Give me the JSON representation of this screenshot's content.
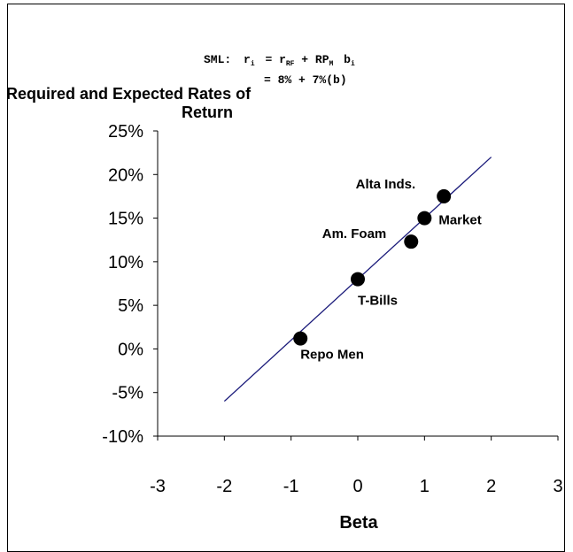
{
  "chart_data": {
    "type": "scatter",
    "title": "Required and Expected Rates of Return",
    "title_lines": [
      "Required and Expected Rates of",
      "Return"
    ],
    "xlabel": "Beta",
    "ylabel": "",
    "xlim": [
      -3,
      3
    ],
    "ylim": [
      -0.1,
      0.25
    ],
    "x_ticks": [
      -3,
      -2,
      -1,
      0,
      1,
      2,
      3
    ],
    "x_tick_labels": [
      "-3",
      "-2",
      "-1",
      "0",
      "1",
      "2",
      "3"
    ],
    "y_ticks": [
      -0.1,
      -0.05,
      0.0,
      0.05,
      0.1,
      0.15,
      0.2,
      0.25
    ],
    "y_tick_labels": [
      "-10%",
      "-5%",
      "0%",
      "5%",
      "10%",
      "15%",
      "20%",
      "25%"
    ],
    "grid": false,
    "line_color": "#1a1a7a",
    "point_color": "#000000",
    "annotation": {
      "sml_prefix": "SML:",
      "sml_equation": "r = r + RP b",
      "sml_numeric": "= 8% + 7%(b)",
      "r_sub_i": "i",
      "r_sub_rf": "RF",
      "rp_sub_m": "M",
      "b_sub_i": "i"
    },
    "sml_line": {
      "x": [
        -2,
        2
      ],
      "y": [
        -0.06,
        0.22
      ]
    },
    "points": [
      {
        "label": "Repo Men",
        "x": -0.86,
        "y": 0.012
      },
      {
        "label": "T-Bills",
        "x": 0.0,
        "y": 0.08
      },
      {
        "label": "Am. Foam",
        "x": 0.8,
        "y": 0.123
      },
      {
        "label": "Market",
        "x": 1.0,
        "y": 0.15
      },
      {
        "label": "Alta Inds.",
        "x": 1.29,
        "y": 0.175
      }
    ]
  }
}
